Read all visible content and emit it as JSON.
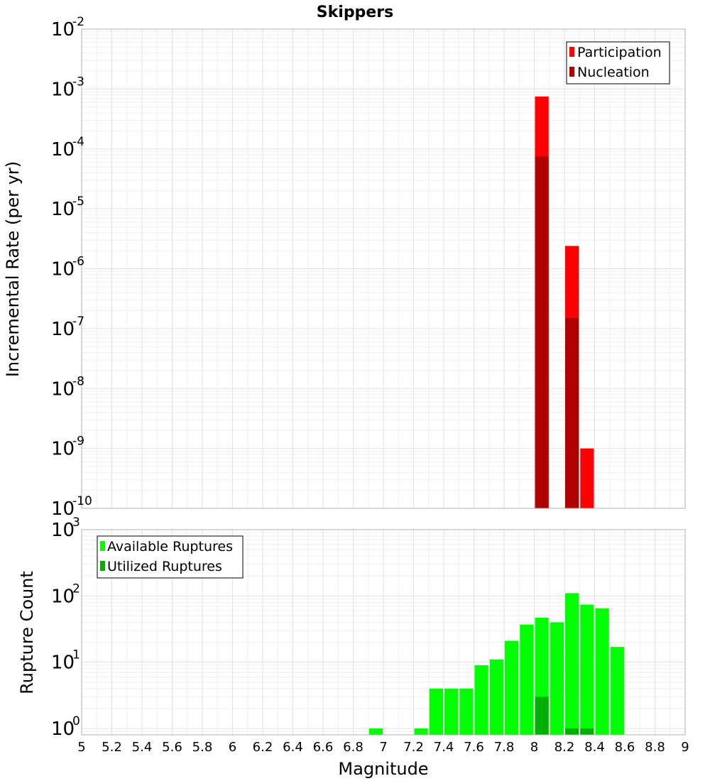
{
  "title": "Skippers",
  "chart_data": [
    {
      "type": "bar",
      "ylabel": "Incremental Rate (per yr)",
      "yscale": "log",
      "ylim": [
        1e-10,
        0.01
      ],
      "yticks": [
        {
          "base": "10",
          "exp": "-2"
        },
        {
          "base": "10",
          "exp": "-3"
        },
        {
          "base": "10",
          "exp": "-4"
        },
        {
          "base": "10",
          "exp": "-5"
        },
        {
          "base": "10",
          "exp": "-6"
        },
        {
          "base": "10",
          "exp": "-7"
        },
        {
          "base": "10",
          "exp": "-8"
        },
        {
          "base": "10",
          "exp": "-9"
        },
        {
          "base": "10",
          "exp": "-10"
        }
      ],
      "xlim": [
        5,
        9
      ],
      "bin_width": 0.1,
      "grid": true,
      "legend_position": "top-right",
      "series": [
        {
          "name": "Participation",
          "color": "#ff0000",
          "x": [
            8.05,
            8.25,
            8.35
          ],
          "values": [
            0.00075,
            2.4e-06,
            1e-09
          ]
        },
        {
          "name": "Nucleation",
          "color": "#b00000",
          "x": [
            8.05,
            8.25
          ],
          "values": [
            7.5e-05,
            1.5e-07
          ]
        }
      ]
    },
    {
      "type": "bar",
      "ylabel": "Rupture Count",
      "yscale": "log",
      "ylim": [
        0.8,
        1000
      ],
      "yticks": [
        {
          "base": "10",
          "exp": "3"
        },
        {
          "base": "10",
          "exp": "2"
        },
        {
          "base": "10",
          "exp": "1"
        },
        {
          "base": "10",
          "exp": "0"
        }
      ],
      "xlabel": "Magnitude",
      "xlim": [
        5,
        9
      ],
      "xticks": [
        "5",
        "5.2",
        "5.4",
        "5.6",
        "5.8",
        "6",
        "6.2",
        "6.4",
        "6.6",
        "6.8",
        "7",
        "7.2",
        "7.4",
        "7.6",
        "7.8",
        "8",
        "8.2",
        "8.4",
        "8.6",
        "8.8",
        "9"
      ],
      "bin_width": 0.1,
      "grid": true,
      "legend_position": "top-left",
      "series": [
        {
          "name": "Available Ruptures",
          "color": "#00ff00",
          "x": [
            6.95,
            7.25,
            7.35,
            7.45,
            7.55,
            7.65,
            7.75,
            7.85,
            7.95,
            8.05,
            8.15,
            8.25,
            8.35,
            8.45,
            8.55
          ],
          "values": [
            1,
            1,
            4,
            4,
            4,
            9,
            11,
            21,
            37,
            47,
            40,
            110,
            74,
            65,
            17
          ]
        },
        {
          "name": "Utilized Ruptures",
          "color": "#00b000",
          "x": [
            8.05,
            8.25,
            8.35
          ],
          "values": [
            3,
            1,
            1
          ]
        }
      ]
    }
  ]
}
